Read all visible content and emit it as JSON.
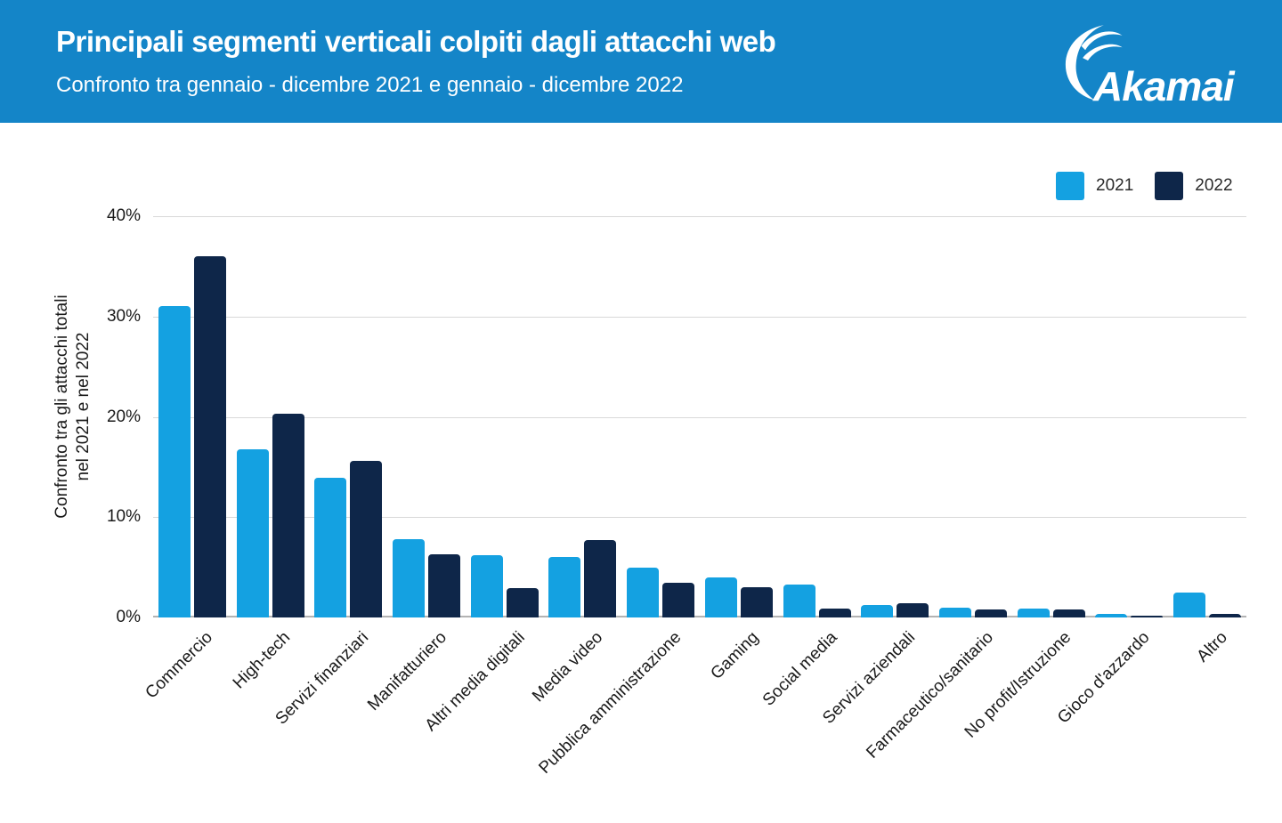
{
  "header": {
    "title": "Principali segmenti verticali colpiti dagli attacchi web",
    "subtitle": "Confronto tra gennaio - dicembre 2021 e gennaio - dicembre 2022",
    "logo": "Akamai",
    "bg_color": "#1485c8"
  },
  "colors": {
    "bar_2021": "#14a1e1",
    "bar_2022": "#0e2649",
    "gridline": "#d9d9d9",
    "axis_line": "#b3b3b3",
    "text": "#1a1a1a"
  },
  "chart_data": {
    "type": "bar",
    "title": "Principali segmenti verticali colpiti dagli attacchi web",
    "subtitle": "Confronto tra gennaio - dicembre 2021 e gennaio - dicembre 2022",
    "ylabel_lines": [
      "Confronto tra gli attacchi totali",
      "nel 2021 e nel 2022"
    ],
    "ylim": [
      0,
      40
    ],
    "yticks": [
      0,
      10,
      20,
      30,
      40
    ],
    "ytick_suffix": "%",
    "grid": true,
    "legend_position": "top-right",
    "categories": [
      "Commercio",
      "High-tech",
      "Servizi finanziari",
      "Manifatturiero",
      "Altri media digitali",
      "Media video",
      "Pubblica amministrazione",
      "Gaming",
      "Social media",
      "Servizi aziendali",
      "Farmaceutico/sanitario",
      "No profit/Istruzione",
      "Gioco d'azzardo",
      "Altro"
    ],
    "series": [
      {
        "name": "2021",
        "color": "#14a1e1",
        "values": [
          31,
          16.8,
          13.9,
          7.8,
          6.2,
          6.0,
          5.0,
          4.0,
          3.3,
          1.2,
          1.0,
          0.9,
          0.4,
          2.5
        ]
      },
      {
        "name": "2022",
        "color": "#0e2649",
        "values": [
          36,
          20.3,
          15.6,
          6.3,
          2.9,
          7.7,
          3.5,
          3.0,
          0.9,
          1.4,
          0.8,
          0.8,
          0.2,
          0.4
        ]
      }
    ]
  }
}
